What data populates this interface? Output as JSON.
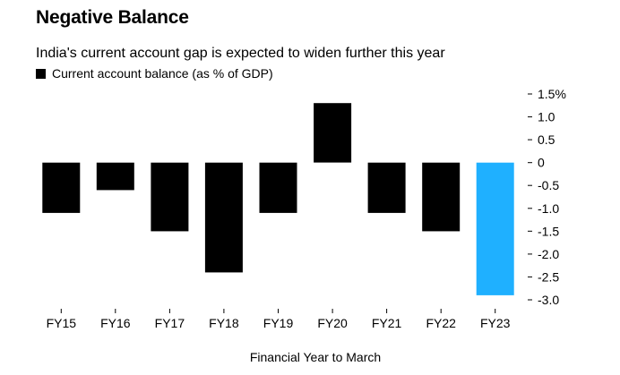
{
  "chart_data": {
    "type": "bar",
    "title": "Negative Balance",
    "subtitle": "India's current account gap is expected to widen further this year",
    "legend": [
      {
        "name": "Current account balance (as % of GDP)",
        "color": "#000000"
      }
    ],
    "xlabel": "Financial Year to March",
    "ylabel": "",
    "categories": [
      "FY15",
      "FY16",
      "FY17",
      "FY18",
      "FY19",
      "FY20",
      "FY21",
      "FY22",
      "FY23"
    ],
    "values": [
      -1.1,
      -0.6,
      -1.5,
      -2.4,
      -1.1,
      1.3,
      -1.1,
      -1.5,
      -2.9
    ],
    "colors": [
      "#000000",
      "#000000",
      "#000000",
      "#000000",
      "#000000",
      "#000000",
      "#000000",
      "#000000",
      "#1fb0ff"
    ],
    "ylim": [
      -3.0,
      1.5
    ],
    "yticks": [
      1.5,
      1.0,
      0.5,
      0,
      -0.5,
      -1.0,
      -1.5,
      -2.0,
      -2.5,
      -3.0
    ],
    "ytick_labels": [
      "1.5%",
      "1.0",
      "0.5",
      "0",
      "-0.5",
      "-1.0",
      "-1.5",
      "-2.0",
      "-2.5",
      "-3.0"
    ],
    "grid": false,
    "legend_position": "top-left"
  }
}
